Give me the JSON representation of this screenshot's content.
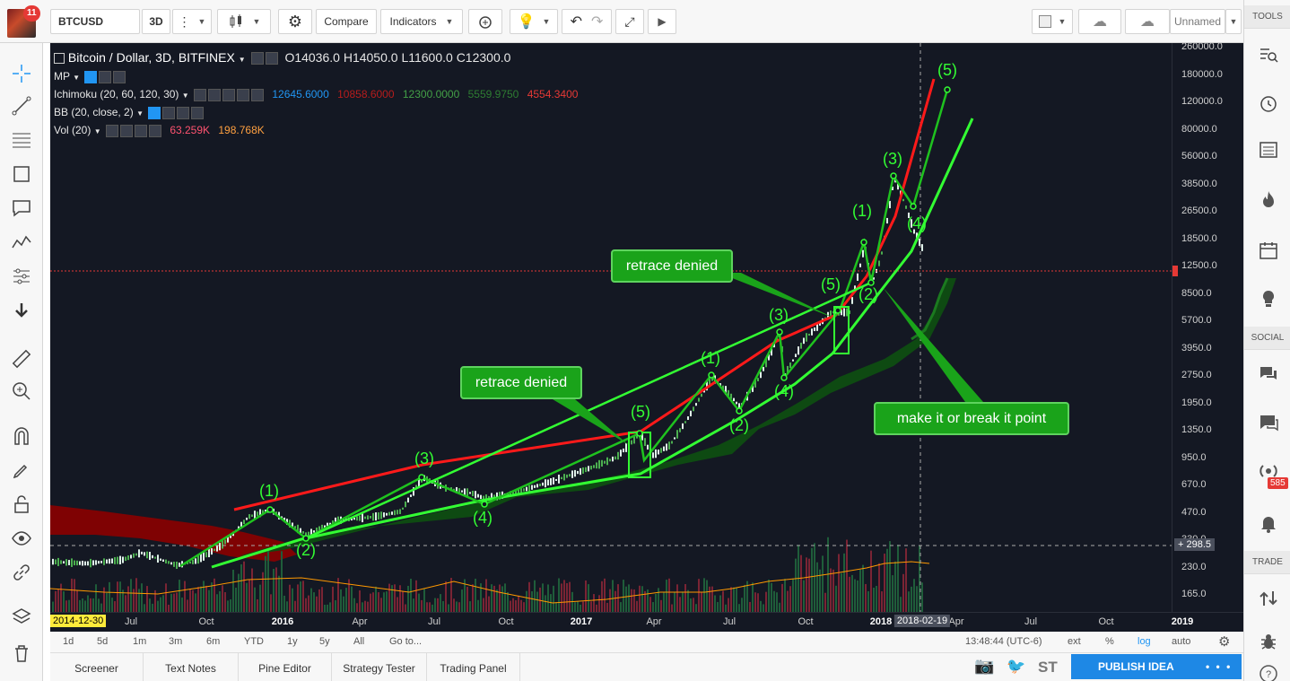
{
  "notifications": "11",
  "toolbar": {
    "symbol": "BTCUSD",
    "interval": "3D",
    "compare": "Compare",
    "indicators": "Indicators",
    "layout_name": "Unnamed"
  },
  "legend": {
    "title": "Bitcoin / Dollar, 3D, BITFINEX",
    "open": "O14036.0",
    "high": "H14050.0",
    "low": "L11600.0",
    "close": "C12300.0",
    "mp": "MP",
    "ichimoku": "Ichimoku (20, 60, 120, 30)",
    "ichimoku_values": [
      "12645.6000",
      "10858.6000",
      "12300.0000",
      "5559.9750",
      "4554.3400"
    ],
    "bb": "BB (20, close, 2)",
    "vol": "Vol (20)",
    "vol_values": [
      "63.259K",
      "198.768K"
    ]
  },
  "price_axis": [
    "260000.0",
    "180000.0",
    "120000.0",
    "80000.0",
    "56000.0",
    "38500.0",
    "26500.0",
    "18500.0",
    "12500.0",
    "8500.0",
    "5700.0",
    "3950.0",
    "2750.0",
    "1950.0",
    "1350.0",
    "950.0",
    "670.0",
    "470.0",
    "330.0",
    "230.0",
    "165.0"
  ],
  "price_cursor_label": "298.5",
  "time_axis": {
    "start": "2014-12-30",
    "labels": [
      "Jul",
      "Oct",
      "2016",
      "Apr",
      "Jul",
      "Oct",
      "2017",
      "Apr",
      "Jul",
      "Oct",
      "2018",
      "Apr",
      "Jul",
      "Oct",
      "2019"
    ],
    "cursor": "2018-02-19"
  },
  "annotations": {
    "callouts": [
      "retrace denied",
      "retrace denied",
      "make it or break it point"
    ],
    "waves": [
      "(1)",
      "(2)",
      "(3)",
      "(4)",
      "(5)",
      "(1)",
      "(2)",
      "(3)",
      "(4)",
      "(5)",
      "(1)",
      "(2)",
      "(3)",
      "(4)",
      "(5)"
    ]
  },
  "range_bar": {
    "ranges": [
      "1d",
      "5d",
      "1m",
      "3m",
      "6m",
      "YTD",
      "1y",
      "5y",
      "All"
    ],
    "goto": "Go to...",
    "clock": "13:48:44 (UTC-6)",
    "ext": "ext",
    "pct": "%",
    "log": "log",
    "auto": "auto"
  },
  "panels": {
    "tabs": [
      "Screener",
      "Text Notes",
      "Pine Editor",
      "Strategy Tester",
      "Trading Panel"
    ],
    "st": "ST",
    "publish": "PUBLISH IDEA",
    "more": "• • •"
  },
  "right_sidebar": {
    "tools": "TOOLS",
    "social": "SOCIAL",
    "trade": "TRADE",
    "streams_badge": "585"
  },
  "colors": {
    "accent": "#1e88e5",
    "chart_bg": "#141823",
    "green": "#20e020",
    "red": "#ff1a1a"
  }
}
